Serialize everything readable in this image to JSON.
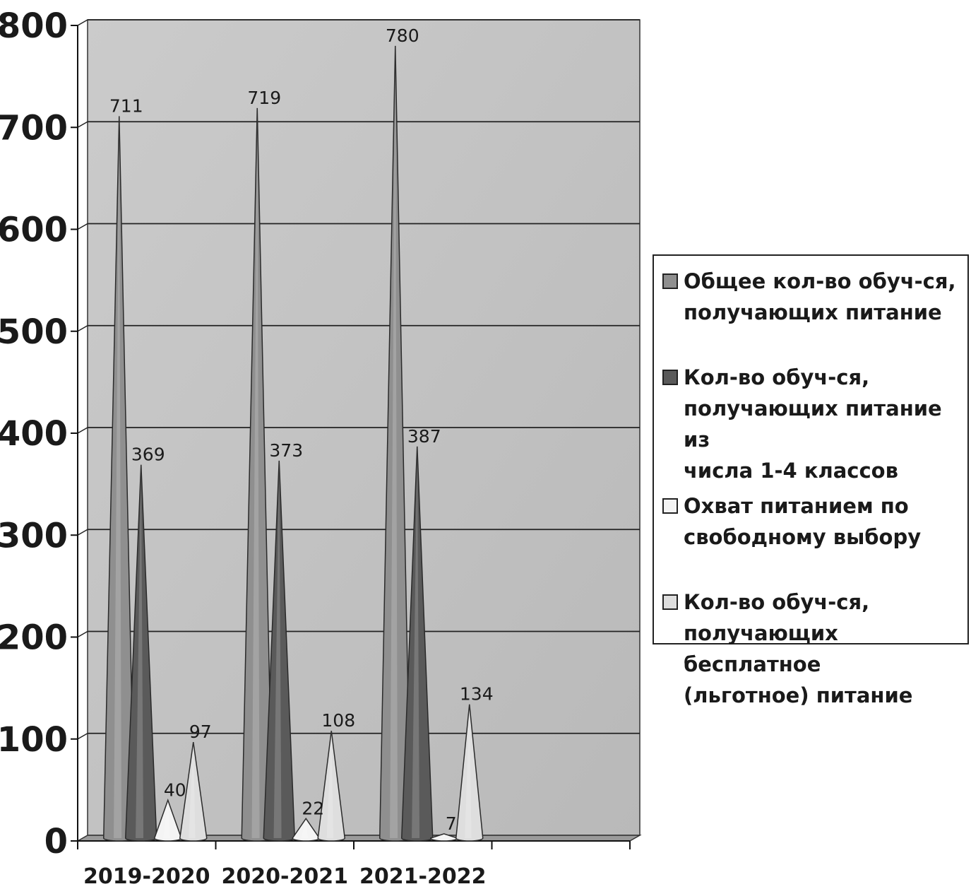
{
  "chart_data": {
    "type": "bar",
    "shape": "cone",
    "categories": [
      "2019-2020",
      "2020-2021",
      "2021-2022"
    ],
    "series": [
      {
        "name": "Общее кол-во обуч-ся, получающих питание",
        "values": [
          711,
          719,
          780
        ],
        "color": "#8f8f8f"
      },
      {
        "name": "Кол-во обуч-ся, получающих питание из числа 1-4 классов",
        "values": [
          369,
          373,
          387
        ],
        "color": "#5a5a5a"
      },
      {
        "name": "Охват питанием по свободному выбору",
        "values": [
          40,
          22,
          7
        ],
        "color": "#f4f4f4"
      },
      {
        "name": "Кол-во обуч-ся, получающих бесплатное (льготное) питание",
        "values": [
          97,
          108,
          134
        ],
        "color": "#dedede"
      }
    ],
    "y_ticks": [
      "0",
      "100",
      "200",
      "300",
      "400",
      "500",
      "600",
      "700",
      "800"
    ],
    "ylim": [
      0,
      800
    ],
    "grid": true,
    "legend_position": "right",
    "title": "",
    "xlabel": "",
    "ylabel": ""
  },
  "legend": {
    "items": [
      {
        "label": "Общее кол-во обуч-ся,\nполучающих питание",
        "color": "#8f8f8f"
      },
      {
        "label": "Кол-во обуч-ся,\nполучающих питание из\nчисла 1-4 классов",
        "color": "#5a5a5a"
      },
      {
        "label": "Охват питанием по\nсвободному выбору",
        "color": "#f4f4f4"
      },
      {
        "label": "Кол-во обуч-ся,\nполучающих бесплатное\n(льготное) питание",
        "color": "#dedede"
      }
    ]
  }
}
